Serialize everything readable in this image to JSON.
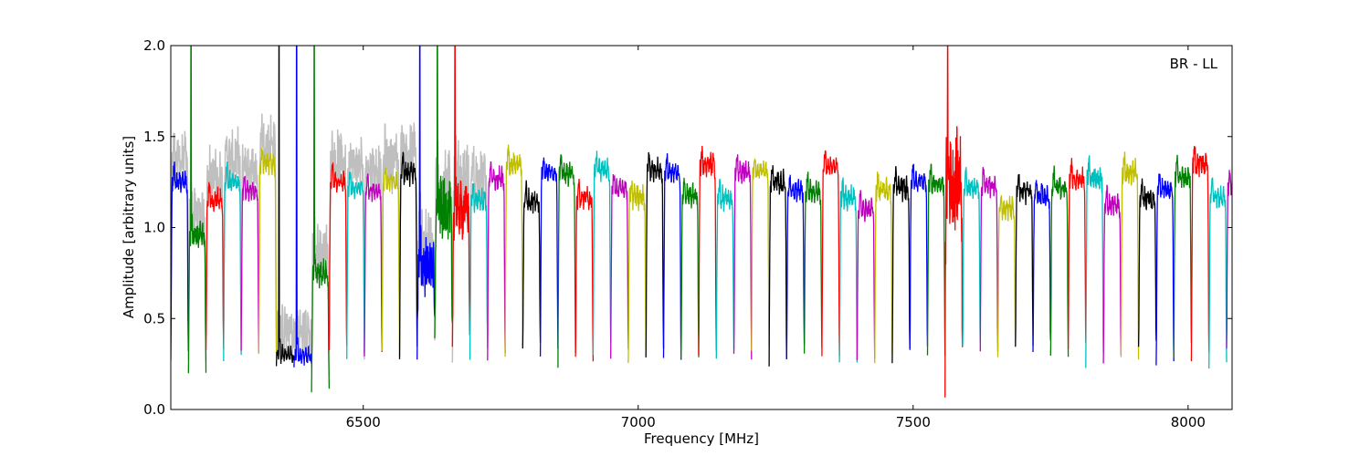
{
  "chart_data": {
    "type": "line",
    "xlabel": "Frequency [MHz]",
    "ylabel": "Amplitude [arbitrary units]",
    "xlim": [
      6150,
      8080
    ],
    "ylim": [
      0.0,
      2.0
    ],
    "xticks": [
      6500,
      7000,
      7500,
      8000
    ],
    "xtick_labels": [
      "6500",
      "7000",
      "7500",
      "8000"
    ],
    "yticks": [
      0.0,
      0.5,
      1.0,
      1.5,
      2.0
    ],
    "ytick_labels": [
      "0.0",
      "0.5",
      "1.0",
      "1.5",
      "2.0"
    ],
    "annotation": "BR - LL",
    "annotation_position": "top-right",
    "grid": false,
    "series_description": "Per-spectral-window bandpass amplitude curves, cycling colors; grey background curve shows unflagged data",
    "color_cycle": [
      "#0000ff",
      "#008000",
      "#ff0000",
      "#00bfbf",
      "#bf00bf",
      "#bfbf00",
      "#000000"
    ],
    "background_color": "#bfbfbf",
    "window_start": 6150,
    "window_width": 32,
    "windows": [
      {
        "start": 6150,
        "mid": 1.25,
        "edge": 0.28,
        "noise": 0.06
      },
      {
        "start": 6182,
        "mid": 0.95,
        "edge": 0.18,
        "noise": 0.1,
        "spike": 2.0
      },
      {
        "start": 6214,
        "mid": 1.15,
        "edge": 0.3,
        "noise": 0.08
      },
      {
        "start": 6246,
        "mid": 1.25,
        "edge": 0.28,
        "noise": 0.06
      },
      {
        "start": 6278,
        "mid": 1.2,
        "edge": 0.3,
        "noise": 0.06
      },
      {
        "start": 6310,
        "mid": 1.35,
        "edge": 0.3,
        "noise": 0.08
      },
      {
        "start": 6342,
        "mid": 0.3,
        "edge": 0.25,
        "noise": 0.04,
        "spike": 2.0
      },
      {
        "start": 6374,
        "mid": 0.3,
        "edge": 0.22,
        "noise": 0.04,
        "spike": 2.0
      },
      {
        "start": 6406,
        "mid": 0.75,
        "edge": 0.08,
        "noise": 0.1,
        "spike": 2.0
      },
      {
        "start": 6438,
        "mid": 1.25,
        "edge": 0.3,
        "noise": 0.06
      },
      {
        "start": 6470,
        "mid": 1.22,
        "edge": 0.3,
        "noise": 0.05
      },
      {
        "start": 6502,
        "mid": 1.2,
        "edge": 0.3,
        "noise": 0.05
      },
      {
        "start": 6534,
        "mid": 1.25,
        "edge": 0.3,
        "noise": 0.05
      },
      {
        "start": 6566,
        "mid": 1.3,
        "edge": 0.3,
        "noise": 0.08
      },
      {
        "start": 6598,
        "mid": 0.8,
        "edge": 0.4,
        "noise": 0.3,
        "spike": 2.0
      },
      {
        "start": 6630,
        "mid": 1.1,
        "edge": 0.3,
        "noise": 0.3,
        "spike": 2.0
      },
      {
        "start": 6662,
        "mid": 1.1,
        "edge": 0.25,
        "noise": 0.3,
        "spike": 2.0
      },
      {
        "start": 6694,
        "mid": 1.15,
        "edge": 0.3,
        "noise": 0.08
      }
    ]
  }
}
